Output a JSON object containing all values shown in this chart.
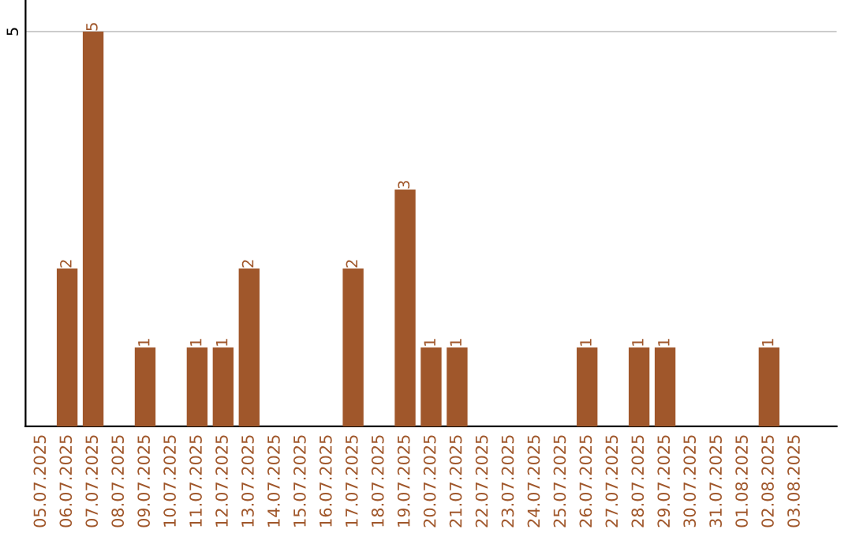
{
  "chart_data": {
    "type": "bar",
    "categories": [
      "05.07.2025",
      "06.07.2025",
      "07.07.2025",
      "08.07.2025",
      "09.07.2025",
      "10.07.2025",
      "11.07.2025",
      "12.07.2025",
      "13.07.2025",
      "14.07.2025",
      "15.07.2025",
      "16.07.2025",
      "17.07.2025",
      "18.07.2025",
      "19.07.2025",
      "20.07.2025",
      "21.07.2025",
      "22.07.2025",
      "23.07.2025",
      "24.07.2025",
      "25.07.2025",
      "26.07.2025",
      "27.07.2025",
      "28.07.2025",
      "29.07.2025",
      "30.07.2025",
      "31.07.2025",
      "01.08.2025",
      "02.08.2025",
      "03.08.2025"
    ],
    "values": [
      0,
      2,
      5,
      0,
      1,
      0,
      1,
      1,
      2,
      0,
      0,
      0,
      2,
      0,
      3,
      1,
      1,
      0,
      0,
      0,
      0,
      1,
      0,
      1,
      1,
      0,
      0,
      0,
      1,
      0
    ],
    "value_labels": [
      null,
      "2",
      "5",
      null,
      "1",
      null,
      "1",
      "1",
      "2",
      null,
      null,
      null,
      "2",
      null,
      "3",
      "1",
      "1",
      null,
      null,
      null,
      null,
      "1",
      null,
      "1",
      "1",
      null,
      null,
      null,
      "1",
      null
    ],
    "color": "#a0572b",
    "ylim": [
      0,
      5.4
    ],
    "yticks": [
      5
    ],
    "grid": "y",
    "legend": false
  }
}
